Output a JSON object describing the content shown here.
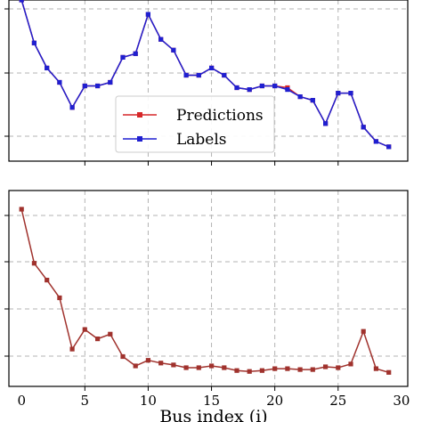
{
  "chart_data": [
    {
      "type": "line",
      "x": [
        0,
        1,
        2,
        3,
        4,
        5,
        6,
        7,
        8,
        9,
        10,
        11,
        12,
        13,
        14,
        15,
        16,
        17,
        18,
        19,
        20,
        21,
        22,
        23,
        24,
        25,
        26,
        27,
        28,
        29
      ],
      "series": [
        {
          "name": "Predictions",
          "color": "#d62728",
          "marker": "square",
          "values": [
            5.0,
            3.8,
            3.1,
            2.7,
            2.0,
            2.6,
            2.6,
            2.7,
            3.4,
            3.5,
            4.6,
            3.9,
            3.6,
            2.9,
            2.9,
            3.1,
            2.9,
            2.55,
            2.5,
            2.6,
            2.6,
            2.55,
            2.3,
            2.2,
            1.55,
            2.4,
            2.4,
            1.45,
            1.05,
            0.9
          ]
        },
        {
          "name": "Labels",
          "color": "#1f1fd0",
          "marker": "square",
          "values": [
            5.0,
            3.8,
            3.1,
            2.7,
            2.0,
            2.6,
            2.6,
            2.7,
            3.4,
            3.5,
            4.6,
            3.9,
            3.6,
            2.9,
            2.9,
            3.1,
            2.9,
            2.55,
            2.5,
            2.6,
            2.6,
            2.5,
            2.3,
            2.2,
            1.55,
            2.4,
            2.4,
            1.45,
            1.05,
            0.9
          ]
        }
      ],
      "xlim": [
        -1,
        30.5
      ],
      "ylim": [
        0.5,
        5.0
      ],
      "grid": true,
      "legend": {
        "location": "lower-center",
        "entries": [
          "Predictions",
          "Labels"
        ]
      }
    },
    {
      "type": "line",
      "x": [
        0,
        1,
        2,
        3,
        4,
        5,
        6,
        7,
        8,
        9,
        10,
        11,
        12,
        13,
        14,
        15,
        16,
        17,
        18,
        19,
        20,
        21,
        22,
        23,
        24,
        25,
        26,
        27,
        28,
        29
      ],
      "series": [
        {
          "name": "",
          "color": "#a0322d",
          "marker": "square",
          "values": [
            0.25,
            0.192,
            0.174,
            0.155,
            0.1,
            0.121,
            0.111,
            0.116,
            0.092,
            0.082,
            0.088,
            0.085,
            0.083,
            0.08,
            0.08,
            0.082,
            0.08,
            0.077,
            0.076,
            0.077,
            0.079,
            0.079,
            0.078,
            0.078,
            0.081,
            0.08,
            0.084,
            0.119,
            0.079,
            0.075
          ]
        }
      ],
      "xlim": [
        -1,
        30.5
      ],
      "ylim": [
        0.06,
        0.27
      ],
      "xticks": [
        0,
        5,
        10,
        15,
        20,
        25,
        30
      ],
      "xlabel": "Bus index (i)",
      "grid": true
    }
  ]
}
